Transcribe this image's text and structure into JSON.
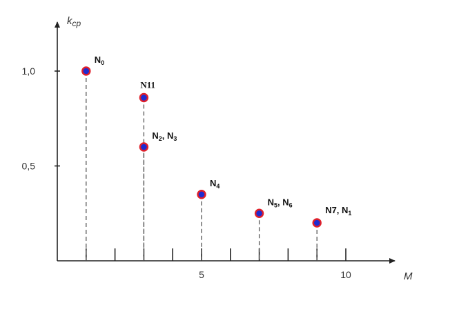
{
  "chart_data": {
    "type": "scatter",
    "title": "",
    "xlabel": "M",
    "ylabel": "k_cp",
    "xlim": [
      0,
      11
    ],
    "ylim": [
      0,
      1.25
    ],
    "x_ticks": [
      1,
      2,
      3,
      4,
      5,
      6,
      7,
      8,
      9,
      10
    ],
    "x_tick_labels": [
      {
        "x": 5,
        "label": "5"
      },
      {
        "x": 10,
        "label": "10"
      }
    ],
    "y_ticks": [
      {
        "y": 1.0,
        "label": "1,0"
      },
      {
        "y": 0.5,
        "label": "0,5"
      }
    ],
    "grid": false,
    "points": [
      {
        "x": 1,
        "y": 1.0,
        "label": "N",
        "sub": "0",
        "style": "sans"
      },
      {
        "x": 3,
        "y": 0.86,
        "label": "N11",
        "sub": "",
        "style": "serif"
      },
      {
        "x": 3,
        "y": 0.6,
        "label": "N",
        "sub": "2",
        "label2": ", N",
        "sub2": "3",
        "style": "sans"
      },
      {
        "x": 5,
        "y": 0.35,
        "label": "N",
        "sub": "4",
        "style": "sans"
      },
      {
        "x": 7,
        "y": 0.25,
        "label": "N",
        "sub": "5",
        "label2": ", N",
        "sub2": "6",
        "style": "sans"
      },
      {
        "x": 9,
        "y": 0.2,
        "label": "N7, N",
        "sub": "1",
        "style": "sans"
      }
    ]
  }
}
